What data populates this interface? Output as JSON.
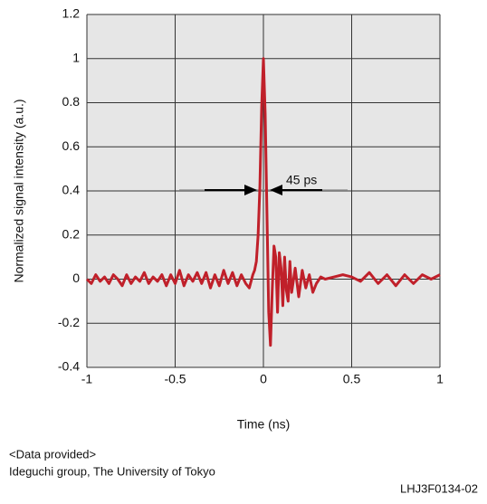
{
  "chart_data": {
    "type": "line",
    "x_label": "Time (ns)",
    "y_label": "Normalized signal intensity (a.u.)",
    "xlim": [
      -1,
      1
    ],
    "xticks": [
      -1,
      -0.5,
      0,
      0.5,
      1
    ],
    "ylim": [
      -0.4,
      1.2
    ],
    "yticks": [
      -0.4,
      -0.2,
      0,
      0.2,
      0.4,
      0.6,
      0.8,
      1,
      1.2
    ],
    "grid": true,
    "annotation": "45 ps",
    "x": [
      -1,
      -0.975,
      -0.95,
      -0.925,
      -0.9,
      -0.875,
      -0.85,
      -0.825,
      -0.8,
      -0.775,
      -0.75,
      -0.725,
      -0.7,
      -0.675,
      -0.65,
      -0.625,
      -0.6,
      -0.575,
      -0.55,
      -0.525,
      -0.5,
      -0.475,
      -0.45,
      -0.425,
      -0.4,
      -0.375,
      -0.35,
      -0.325,
      -0.3,
      -0.275,
      -0.25,
      -0.225,
      -0.2,
      -0.175,
      -0.15,
      -0.125,
      -0.1,
      -0.08,
      -0.06,
      -0.05,
      -0.04,
      -0.03,
      -0.02,
      -0.01,
      0,
      0.01,
      0.02,
      0.03,
      0.04,
      0.05,
      0.06,
      0.07,
      0.08,
      0.09,
      0.1,
      0.11,
      0.12,
      0.13,
      0.14,
      0.15,
      0.16,
      0.18,
      0.2,
      0.22,
      0.24,
      0.26,
      0.28,
      0.3,
      0.325,
      0.35,
      0.4,
      0.45,
      0.5,
      0.55,
      0.6,
      0.65,
      0.7,
      0.75,
      0.8,
      0.85,
      0.9,
      0.95,
      1
    ],
    "series": [
      {
        "color": "#c0202a",
        "values": [
          0,
          -0.02,
          0.02,
          -0.01,
          0.01,
          -0.02,
          0.02,
          0,
          -0.03,
          0.02,
          -0.02,
          0.01,
          -0.01,
          0.03,
          -0.02,
          0.01,
          -0.01,
          0.02,
          -0.03,
          0.02,
          -0.02,
          0.04,
          -0.03,
          0.02,
          -0.01,
          0.03,
          -0.02,
          0.03,
          -0.04,
          0.02,
          -0.03,
          0.04,
          -0.02,
          0.03,
          -0.03,
          0.02,
          -0.02,
          -0.04,
          0.02,
          0.04,
          0.08,
          0.2,
          0.42,
          0.78,
          1.0,
          0.75,
          0.3,
          -0.15,
          -0.3,
          -0.05,
          0.15,
          0.1,
          -0.15,
          0.12,
          0.05,
          -0.12,
          0.1,
          -0.05,
          -0.1,
          0.08,
          -0.06,
          0.05,
          -0.08,
          0.04,
          -0.04,
          0.02,
          -0.06,
          -0.02,
          0.01,
          0,
          0.01,
          0.02,
          0.01,
          -0.01,
          0.03,
          -0.02,
          0.02,
          -0.03,
          0.02,
          -0.02,
          0.02,
          0,
          0.02
        ]
      }
    ]
  },
  "footer": {
    "note_title": "<Data provided>",
    "note_text": "Ideguchi group, The University of Tokyo",
    "code": "LHJ3F0134-02"
  }
}
